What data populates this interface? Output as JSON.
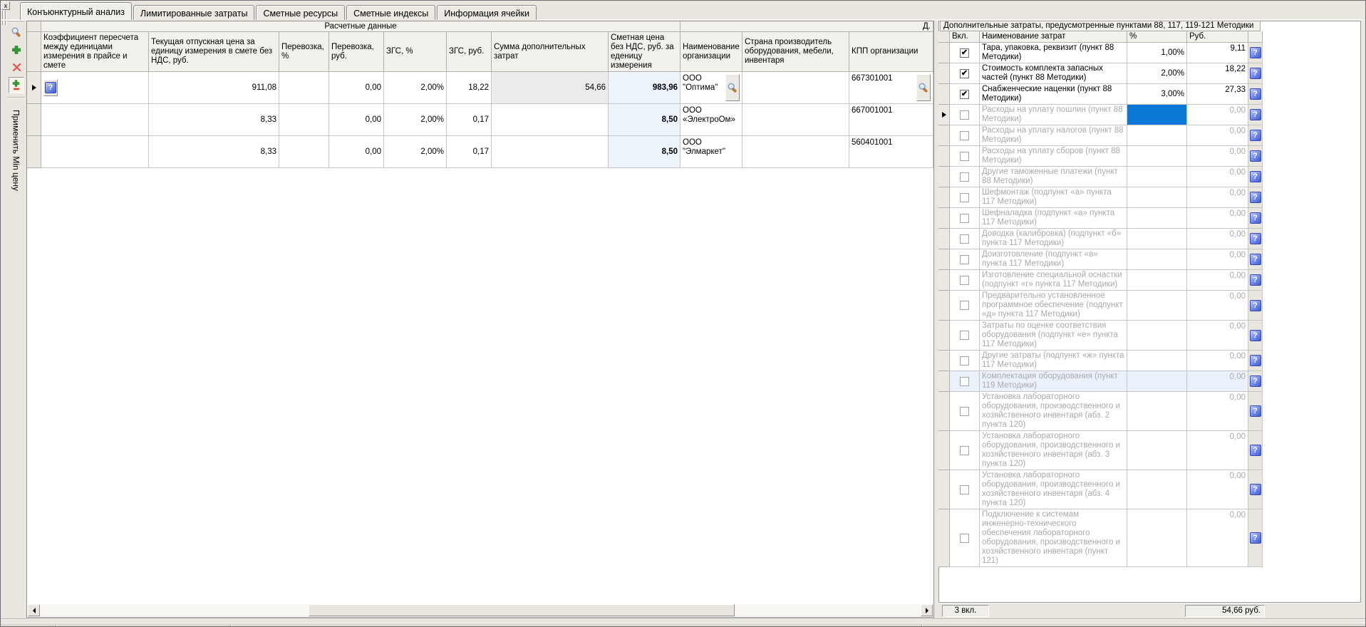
{
  "window": {
    "close_button": "x"
  },
  "icons": {
    "question": "?",
    "check": "✔"
  },
  "tabs": [
    "Конъюнктурный анализ",
    "Лимитированные затраты",
    "Сметные ресурсы",
    "Сметные индексы",
    "Информация ячейки"
  ],
  "toolbar": {
    "apply_min_label": "Применить Min цену"
  },
  "left_table": {
    "group_header": "Расчетные данные",
    "group_header_right": "Д.",
    "columns": [
      "Коэффициент пересчета между единицами измерения в прайсе и смете",
      "Текущая отпускная цена за единицу измерения в смете без НДС, руб.",
      "Перевозка, %",
      "Перевозка, руб.",
      "ЗГС, %",
      "ЗГС, руб.",
      "Сумма дополнительных затрат",
      "Сметная цена без НДС, руб. за еденицу измерения",
      "Наименование организации",
      "Страна производитель оборудования, мебели, инвентаря",
      "КПП организации"
    ],
    "rows": [
      {
        "coef": "",
        "price": "911,08",
        "transport_pct": "",
        "transport_rub": "0,00",
        "zgs_pct": "2,00%",
        "zgs_rub": "18,22",
        "extra": "54,66",
        "estimate": "983,96",
        "org": "ООО \"Оптима\"",
        "country": "",
        "kpp": "667301001"
      },
      {
        "coef": "",
        "price": "8,33",
        "transport_pct": "",
        "transport_rub": "0,00",
        "zgs_pct": "2,00%",
        "zgs_rub": "0,17",
        "extra": "",
        "estimate": "8,50",
        "org": "ООО «ЭлектроОм»",
        "country": "",
        "kpp": "667001001"
      },
      {
        "coef": "",
        "price": "8,33",
        "transport_pct": "",
        "transport_rub": "0,00",
        "zgs_pct": "2,00%",
        "zgs_rub": "0,17",
        "extra": "",
        "estimate": "8,50",
        "org": "ООО \"Элмаркет\"",
        "country": "",
        "kpp": "560401001"
      }
    ]
  },
  "right_table": {
    "title": "Дополнительные затраты, предусмотренные пунктами 88, 117, 119-121 Методики",
    "columns": {
      "incl": "Вкл.",
      "name": "Наименование затрат",
      "pct": "%",
      "rub": "Руб."
    },
    "rows": [
      {
        "checked": true,
        "name": "Тара, упаковка, реквизит (пункт 88 Методики)",
        "pct": "1,00%",
        "rub": "9,11"
      },
      {
        "checked": true,
        "name": "Стоимость комплекта запасных частей (пункт 88 Методики)",
        "pct": "2,00%",
        "rub": "18,22"
      },
      {
        "checked": true,
        "name": "Снабженческие наценки (пункт 88 Методики)",
        "pct": "3,00%",
        "rub": "27,33"
      },
      {
        "checked": false,
        "name": "Расходы на уплату пошлин (пункт 88 Методики)",
        "pct": "",
        "rub": "0,00",
        "selected": true,
        "marker": true
      },
      {
        "checked": false,
        "name": "Расходы на уплату налогов (пункт 88 Методики)",
        "pct": "",
        "rub": "0,00"
      },
      {
        "checked": false,
        "name": "Расходы на уплату сборов (пункт 88 Методики)",
        "pct": "",
        "rub": "0,00"
      },
      {
        "checked": false,
        "name": "Другие таможенные платежи (пункт 88 Методики)",
        "pct": "",
        "rub": "0,00"
      },
      {
        "checked": false,
        "name": "Шефмонтаж (подпункт «а» пункта 117 Методики)",
        "pct": "",
        "rub": "0,00"
      },
      {
        "checked": false,
        "name": "Шефналадка (подпункт «а» пункта 117 Методики)",
        "pct": "",
        "rub": "0,00"
      },
      {
        "checked": false,
        "name": "Доводка (калибровка) (подпункт «б» пункта 117 Методики)",
        "pct": "",
        "rub": "0,00"
      },
      {
        "checked": false,
        "name": "Доизготовление (подпункт «в» пункта 117 Методики)",
        "pct": "",
        "rub": "0,00"
      },
      {
        "checked": false,
        "name": "Изготовление специальной оснастки (подпункт «г» пункта 117 Методики)",
        "pct": "",
        "rub": "0,00"
      },
      {
        "checked": false,
        "name": "Предварительно установленное программное обеспечение (подпункт «д» пункта 117 Методики)",
        "pct": "",
        "rub": "0,00"
      },
      {
        "checked": false,
        "name": "Затраты по оценке соответствия оборудования (подпункт «е» пункта 117 Методики)",
        "pct": "",
        "rub": "0,00"
      },
      {
        "checked": false,
        "name": "Другие затраты (подпункт «ж» пункта 117 Методики)",
        "pct": "",
        "rub": "0,00"
      },
      {
        "checked": false,
        "name": "Комплектация оборудования (пункт 119 Методики)",
        "pct": "",
        "rub": "0,00",
        "highlight": true
      },
      {
        "checked": false,
        "name": "Установка лабораторного оборудования, производственного и хозяйственного инвентаря (абз. 2 пункта 120)",
        "pct": "",
        "rub": "0,00"
      },
      {
        "checked": false,
        "name": "Установка лабораторного оборудования, производственного и хозяйственного инвентаря (абз. 3 пункта 120)",
        "pct": "",
        "rub": "0,00"
      },
      {
        "checked": false,
        "name": "Установка лабораторного оборудования, производственного и хозяйственного инвентаря (абз. 4 пункта 120)",
        "pct": "",
        "rub": "0,00"
      },
      {
        "checked": false,
        "name": "Подключение к системам инженерно-технического обеспечения лабораторного оборудования, производственного и хозяйственного инвентаря (пункт 121)",
        "pct": "",
        "rub": "0,00"
      }
    ],
    "status_included": "3 вкл.",
    "status_total": "54,66 руб."
  }
}
